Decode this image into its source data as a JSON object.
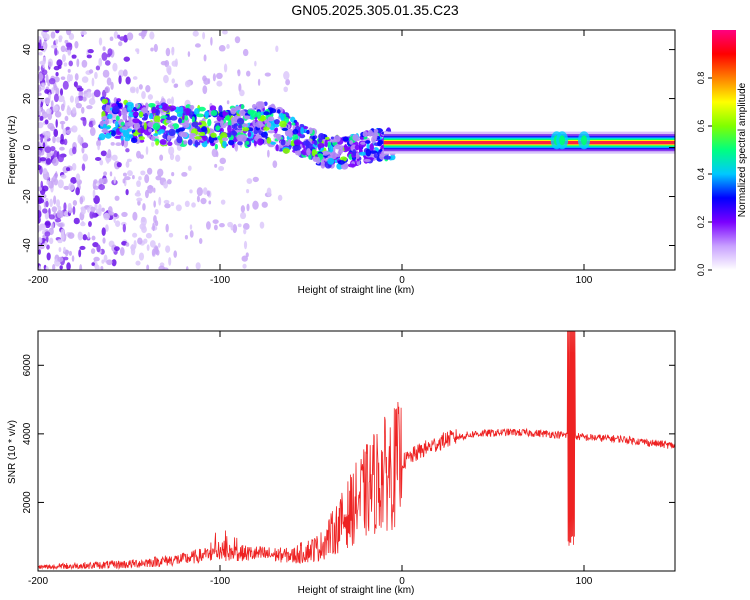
{
  "title": "GN05.2025.305.01.35.C23",
  "chart_data": [
    {
      "type": "heatmap",
      "name": "spectrogram",
      "xlabel": "Height of straight line (km)",
      "ylabel": "Frequency (Hz)",
      "xlim": [
        -200,
        150
      ],
      "ylim": [
        -50,
        48
      ],
      "xticks": [
        -200,
        -100,
        0,
        100
      ],
      "yticks": [
        -40,
        -20,
        0,
        20,
        40
      ],
      "colorbar": {
        "label": "Normalized spectral amplitude",
        "range": [
          0,
          1
        ],
        "ticks": [
          "0.0",
          "0.2",
          "0.4",
          "0.6",
          "0.8"
        ],
        "colors": [
          "#ffffff",
          "#c8a0ff",
          "#7a00ff",
          "#0000ff",
          "#00c8ff",
          "#00ff80",
          "#80ff00",
          "#ffff00",
          "#ff8000",
          "#ff0000",
          "#ff0080"
        ]
      },
      "features": {
        "noise_region_x": [
          -200,
          -60
        ],
        "trend_points": [
          {
            "x": -160,
            "y": 12
          },
          {
            "x": -130,
            "y": 9
          },
          {
            "x": -100,
            "y": 8
          },
          {
            "x": -75,
            "y": 10
          },
          {
            "x": -60,
            "y": 5
          },
          {
            "x": -45,
            "y": -1
          },
          {
            "x": -30,
            "y": -2
          },
          {
            "x": -15,
            "y": 1
          },
          {
            "x": 0,
            "y": 2
          },
          {
            "x": 20,
            "y": 1
          },
          {
            "x": 50,
            "y": 1
          },
          {
            "x": 85,
            "y": 3
          },
          {
            "x": 100,
            "y": 2
          },
          {
            "x": 150,
            "y": 2
          }
        ],
        "strong_band_x": [
          -10,
          150
        ],
        "strong_band_y": 2
      }
    },
    {
      "type": "line",
      "name": "snr",
      "xlabel": "Height of straight line (km)",
      "ylabel": "SNR (10 * v/v)",
      "xlim": [
        -200,
        150
      ],
      "ylim": [
        0,
        7000
      ],
      "xticks": [
        -200,
        -100,
        0,
        100
      ],
      "yticks": [
        2000,
        4000,
        6000
      ],
      "color": "#ee2222",
      "trend": [
        {
          "x": -200,
          "y": 100
        },
        {
          "x": -150,
          "y": 200
        },
        {
          "x": -120,
          "y": 350
        },
        {
          "x": -100,
          "y": 550
        },
        {
          "x": -80,
          "y": 500
        },
        {
          "x": -60,
          "y": 450
        },
        {
          "x": -45,
          "y": 700
        },
        {
          "x": -35,
          "y": 1300
        },
        {
          "x": -25,
          "y": 2000
        },
        {
          "x": -15,
          "y": 2600
        },
        {
          "x": -5,
          "y": 3000
        },
        {
          "x": 10,
          "y": 3500
        },
        {
          "x": 25,
          "y": 3850
        },
        {
          "x": 40,
          "y": 4000
        },
        {
          "x": 60,
          "y": 4050
        },
        {
          "x": 80,
          "y": 4000
        },
        {
          "x": 92,
          "y": 3950
        },
        {
          "x": 100,
          "y": 3900
        },
        {
          "x": 120,
          "y": 3850
        },
        {
          "x": 150,
          "y": 3650
        }
      ],
      "spike": {
        "x": 93,
        "y_max": 7000,
        "y_min": 600
      }
    }
  ]
}
